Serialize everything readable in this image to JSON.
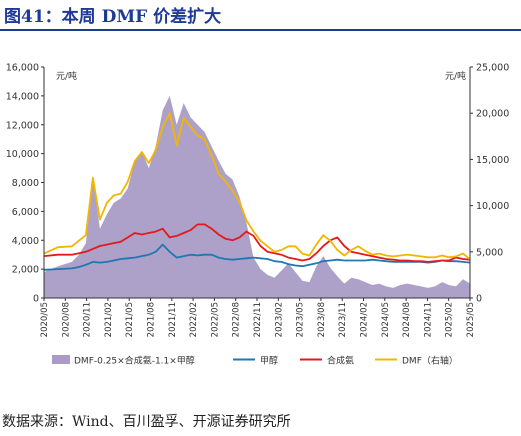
{
  "figure": {
    "title": "图41：本周 DMF 价差扩大",
    "source": "数据来源：Wind、百川盈孚、开源证券研究所"
  },
  "chart_data": {
    "type": "area+line",
    "left_axis": {
      "label": "元/吨",
      "ylim": [
        0,
        16000
      ],
      "ticks": [
        "0",
        "2,000",
        "4,000",
        "6,000",
        "8,000",
        "10,000",
        "12,000",
        "14,000",
        "16,000"
      ]
    },
    "right_axis": {
      "label": "元/吨",
      "ylim": [
        0,
        25000
      ],
      "ticks": [
        "0",
        "5,000",
        "10,000",
        "15,000",
        "20,000",
        "25,000"
      ]
    },
    "x_tick_labels": [
      "2020/05",
      "2020/08",
      "2020/11",
      "2021/02",
      "2021/05",
      "2021/08",
      "2021/11",
      "2022/02",
      "2022/05",
      "2022/08",
      "2022/11",
      "2023/02",
      "2023/05",
      "2023/08",
      "2023/11",
      "2024/02",
      "2024/05",
      "2024/08",
      "2024/11",
      "2025/02",
      "2025/05"
    ],
    "x": [
      "2020-05",
      "2020-07",
      "2020-09",
      "2020-10",
      "2020-11",
      "2020-12",
      "2021-01",
      "2021-02",
      "2021-03",
      "2021-04",
      "2021-05",
      "2021-06",
      "2021-07",
      "2021-08",
      "2021-09",
      "2021-10",
      "2021-11",
      "2021-12",
      "2022-01",
      "2022-02",
      "2022-03",
      "2022-04",
      "2022-05",
      "2022-06",
      "2022-07",
      "2022-08",
      "2022-09",
      "2022-10",
      "2022-11",
      "2022-12",
      "2023-01",
      "2023-02",
      "2023-03",
      "2023-04",
      "2023-05",
      "2023-06",
      "2023-07",
      "2023-08",
      "2023-09",
      "2023-10",
      "2023-11",
      "2023-12",
      "2024-01",
      "2024-02",
      "2024-03",
      "2024-04",
      "2024-05",
      "2024-06",
      "2024-07",
      "2024-08",
      "2024-09",
      "2024-10",
      "2024-11",
      "2024-12",
      "2025-01",
      "2025-02",
      "2025-03",
      "2025-04",
      "2025-05",
      "2025-06"
    ],
    "series": [
      {
        "name": "DMF-0.25×合成氨-1.1×甲醇",
        "type": "area",
        "axis": "left",
        "color": "#a99bc6",
        "values": [
          1800,
          2200,
          2500,
          3000,
          3800,
          8500,
          4800,
          5800,
          6600,
          6900,
          7600,
          9500,
          10200,
          9000,
          10500,
          13000,
          14000,
          12000,
          13500,
          12500,
          12000,
          11500,
          10500,
          9500,
          8600,
          8200,
          7000,
          5200,
          2800,
          2000,
          1600,
          1400,
          1900,
          2400,
          1800,
          1200,
          1100,
          2200,
          2900,
          2100,
          1500,
          1000,
          1400,
          1300,
          1100,
          900,
          1000,
          800,
          700,
          900,
          1000,
          900,
          800,
          700,
          800,
          1100,
          900,
          800,
          1300,
          1000
        ]
      },
      {
        "name": "甲醇",
        "type": "line",
        "axis": "left",
        "color": "#1f77b4",
        "values": [
          1950,
          2000,
          2050,
          2150,
          2300,
          2500,
          2450,
          2500,
          2600,
          2700,
          2750,
          2800,
          2900,
          3000,
          3200,
          3700,
          3200,
          2800,
          2900,
          3000,
          2950,
          3000,
          3000,
          2800,
          2700,
          2650,
          2700,
          2750,
          2800,
          2750,
          2700,
          2550,
          2500,
          2350,
          2250,
          2200,
          2300,
          2400,
          2550,
          2600,
          2650,
          2600,
          2600,
          2600,
          2600,
          2650,
          2600,
          2550,
          2500,
          2500,
          2500,
          2500,
          2500,
          2450,
          2500,
          2600,
          2550,
          2550,
          2500,
          2450
        ]
      },
      {
        "name": "合成氨",
        "type": "line",
        "axis": "left",
        "color": "#e31a1c",
        "values": [
          2900,
          3000,
          3000,
          3100,
          3200,
          3400,
          3600,
          3700,
          3800,
          3900,
          4200,
          4500,
          4400,
          4500,
          4600,
          4800,
          4200,
          4300,
          4500,
          4700,
          5100,
          5100,
          4800,
          4400,
          4100,
          4000,
          4200,
          4600,
          4300,
          3600,
          3200,
          3100,
          3000,
          2800,
          2700,
          2600,
          2700,
          3100,
          3600,
          4000,
          4200,
          3600,
          3200,
          3100,
          3000,
          2900,
          2800,
          2700,
          2650,
          2600,
          2600,
          2550,
          2550,
          2500,
          2550,
          2600,
          2600,
          2800,
          2700,
          2650
        ]
      },
      {
        "name": "DMF（右轴）",
        "type": "line",
        "axis": "right",
        "color": "#f2b600",
        "values": [
          4800,
          5500,
          5600,
          6200,
          6800,
          13000,
          8500,
          10300,
          11100,
          11300,
          12600,
          14800,
          15800,
          14600,
          16000,
          18500,
          20000,
          16500,
          19500,
          18500,
          17600,
          17200,
          15400,
          13500,
          12600,
          11600,
          10400,
          8400,
          7200,
          6200,
          5600,
          5000,
          5200,
          5600,
          5600,
          4800,
          4600,
          5800,
          6800,
          6200,
          5200,
          4600,
          5200,
          5600,
          5100,
          4700,
          4800,
          4600,
          4500,
          4600,
          4700,
          4600,
          4500,
          4400,
          4400,
          4600,
          4400,
          4500,
          4800,
          4200
        ]
      }
    ],
    "legend": [
      "DMF-0.25×合成氨-1.1×甲醇",
      "甲醇",
      "合成氨",
      "DMF（右轴）"
    ],
    "legend_position": "bottom",
    "grid": false
  }
}
